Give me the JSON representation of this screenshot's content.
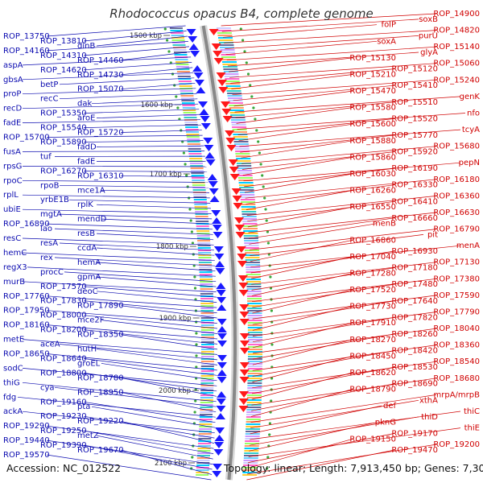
{
  "title": "Rhodococcus opacus B4, complete genome",
  "footer": {
    "accession": "Accession: NC_012522",
    "summary": "Topology: linear; Length: 7,913,450 bp; Genes: 7,307"
  },
  "colors": {
    "left_labels": "#0b0bb0",
    "right_labels": "#d00000",
    "forward_strand": "#1a1aff",
    "reverse_strand": "#ff1a1a",
    "backbone": "#888888",
    "tick_dots": "#3aa63a"
  },
  "kbp_ticks": [
    "1500 kbp",
    "1600 kbp",
    "1700 kbp",
    "1800 kbp",
    "1900 kbp",
    "2000 kbp",
    "2100 kbp"
  ],
  "left_labels": [
    "ROP_13750",
    "ROP_13810",
    "dinB",
    "ROP_14160",
    "ROP_14310",
    "ROP_14460",
    "aspA",
    "ROP_14620",
    "ROP_14730",
    "gbsA",
    "betP",
    "ROP_15070",
    "proP",
    "recC",
    "dak",
    "recD",
    "ROP_15350",
    "aroE",
    "fadE",
    "ROP_15540",
    "ROP_15720",
    "ROP_15700",
    "ROP_15890",
    "fadD",
    "fusA",
    "tuf",
    "fadE",
    "rpsG",
    "ROP_16270",
    "ROP_16310",
    "rpoC",
    "rpoB",
    "mce1A",
    "rplL",
    "yrbE1B",
    "rplK",
    "ubiE",
    "mgtA",
    "mendD",
    "ROP_16890",
    "lao",
    "resB",
    "resC",
    "resA",
    "ccdA",
    "hemC",
    "rex",
    "hemA",
    "regX3",
    "procC",
    "gpmA",
    "murB",
    "ROP_17570",
    "deoC",
    "ROP_17760",
    "ROP_17830",
    "ROP_17890",
    "ROP_17950",
    "ROP_18000",
    "mce2F",
    "ROP_18160",
    "ROP_18200",
    "ROP_18350",
    "metE",
    "aceA",
    "hutH",
    "ROP_18650",
    "ROP_18640",
    "groEL",
    "sodC",
    "ROP_18800",
    "ROP_18780",
    "thiG",
    "cya",
    "ROP_18950",
    "fdg",
    "ROP_19160",
    "pta",
    "ackA",
    "ROP_19230",
    "ROP_19220",
    "ROP_19290",
    "ROP_19250",
    "metZ",
    "ROP_19440",
    "ROP_19390",
    "ROP_19670",
    "ROP_19570"
  ],
  "right_labels": [
    "ROP_14900",
    "soxB",
    "folP",
    "ROP_14820",
    "purU",
    "soxA",
    "ROP_15140",
    "glyA",
    "ROP_15130",
    "ROP_15060",
    "ROP_15120",
    "ROP_15210",
    "ROP_15240",
    "ROP_15410",
    "ROP_15470",
    "genK",
    "ROP_15510",
    "ROP_15580",
    "nfo",
    "ROP_15520",
    "ROP_15600",
    "tcyA",
    "ROP_15770",
    "ROP_15880",
    "ROP_15680",
    "ROP_15920",
    "ROP_15860",
    "pepN",
    "ROP_16190",
    "ROP_16030",
    "ROP_16180",
    "ROP_16330",
    "ROP_16260",
    "ROP_16360",
    "ROP_16410",
    "ROP_16550",
    "ROP_16630",
    "ROP_16660",
    "menB",
    "ROP_16790",
    "pit",
    "ROP_16860",
    "menA",
    "ROP_16930",
    "ROP_17040",
    "ROP_17130",
    "ROP_17180",
    "ROP_17280",
    "ROP_17380",
    "ROP_17480",
    "ROP_17520",
    "ROP_17590",
    "ROP_17640",
    "ROP_17730",
    "ROP_17790",
    "ROP_17820",
    "ROP_17910",
    "ROP_18040",
    "ROP_18260",
    "ROP_18270",
    "ROP_18360",
    "ROP_18420",
    "ROP_18450",
    "ROP_18540",
    "ROP_18530",
    "ROP_18620",
    "ROP_18680",
    "ROP_18690",
    "ROP_18790",
    "mrpA/mrpB",
    "xthA",
    "def",
    "thiC",
    "thiD",
    "pknG",
    "thiE",
    "ROP_19170",
    "ROP_19150",
    "ROP_19200",
    "ROP_19470"
  ]
}
